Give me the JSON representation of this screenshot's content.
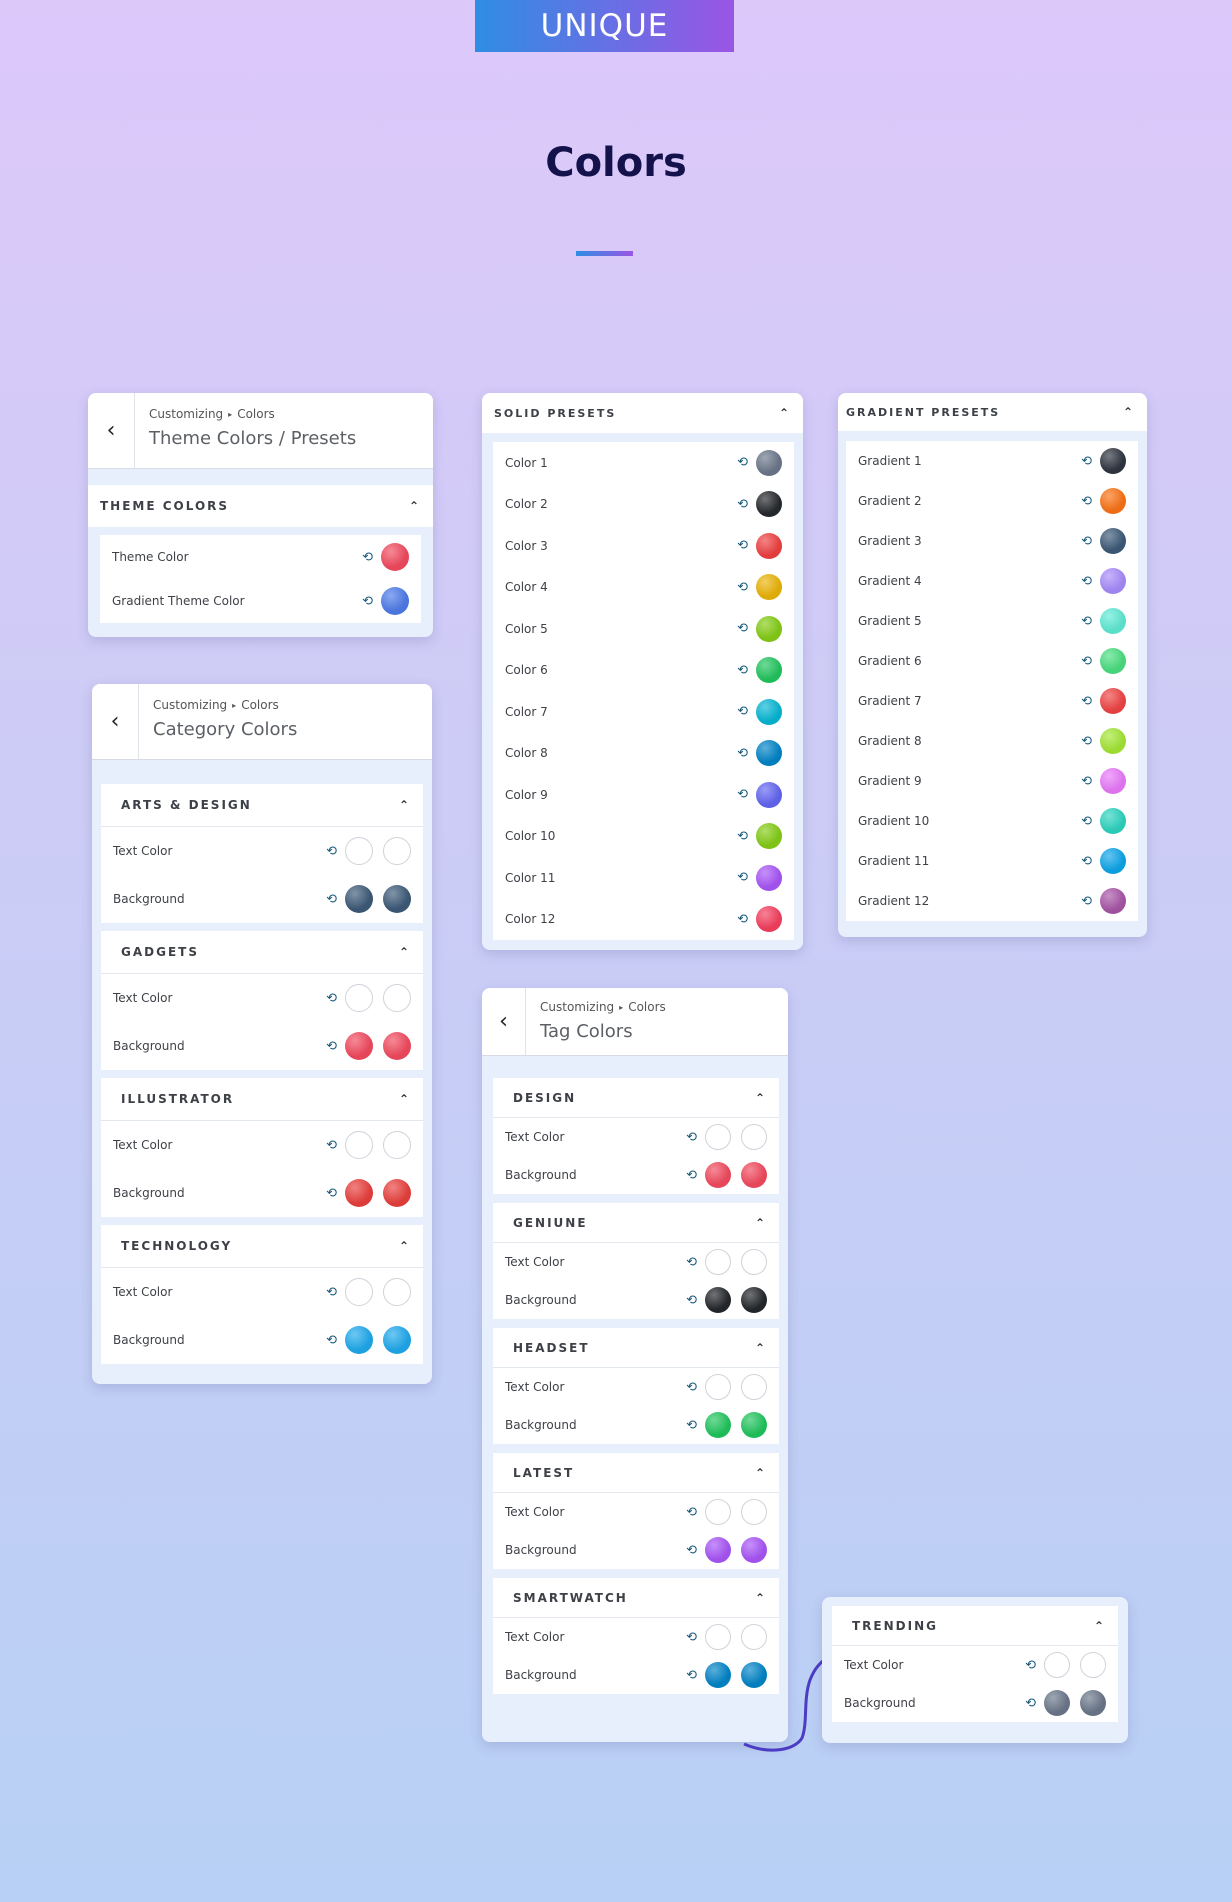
{
  "brand": "UNIQUE",
  "heading": "Colors",
  "theme_panel": {
    "crumb_a": "Customizing",
    "crumb_b": "Colors",
    "title": "Theme Colors / Presets",
    "section": "THEME COLORS",
    "rows": [
      {
        "label": "Theme Color",
        "color": "#f14a5e"
      },
      {
        "label": "Gradient Theme Color",
        "color": "#4e7be8"
      }
    ]
  },
  "category_panel": {
    "crumb_a": "Customizing",
    "crumb_b": "Colors",
    "title": "Category Colors",
    "groups": [
      {
        "name": "ARTS & DESIGN",
        "text_label": "Text Color",
        "bg_label": "Background",
        "bg": "#3d5a78"
      },
      {
        "name": "GADGETS",
        "text_label": "Text Color",
        "bg_label": "Background",
        "bg": "#f14a5e"
      },
      {
        "name": "ILLUSTRATOR",
        "text_label": "Text Color",
        "bg_label": "Background",
        "bg": "#e8403d"
      },
      {
        "name": "TECHNOLOGY",
        "text_label": "Text Color",
        "bg_label": "Background",
        "bg": "#1fa9ec"
      }
    ]
  },
  "solid_panel": {
    "section": "SOLID PRESETS",
    "rows": [
      {
        "label": "Color 1",
        "color": "#6b778a"
      },
      {
        "label": "Color 2",
        "color": "#26292d"
      },
      {
        "label": "Color 3",
        "color": "#ee4040"
      },
      {
        "label": "Color 4",
        "color": "#eab308"
      },
      {
        "label": "Color 5",
        "color": "#84cc16"
      },
      {
        "label": "Color 6",
        "color": "#22c55e"
      },
      {
        "label": "Color 7",
        "color": "#06b6d4"
      },
      {
        "label": "Color 8",
        "color": "#0284c7"
      },
      {
        "label": "Color 9",
        "color": "#6366f1"
      },
      {
        "label": "Color 10",
        "color": "#84cc16"
      },
      {
        "label": "Color 11",
        "color": "#a855f7"
      },
      {
        "label": "Color 12",
        "color": "#f43f5e"
      }
    ]
  },
  "gradient_panel": {
    "section": "GRADIENT PRESETS",
    "rows": [
      {
        "label": "Gradient 1",
        "color": "#2f3640"
      },
      {
        "label": "Gradient 2",
        "color": "#f97316"
      },
      {
        "label": "Gradient 3",
        "color": "#3d5a78"
      },
      {
        "label": "Gradient 4",
        "color": "#a78bfa"
      },
      {
        "label": "Gradient 5",
        "color": "#5eead4"
      },
      {
        "label": "Gradient 6",
        "color": "#4ade80"
      },
      {
        "label": "Gradient 7",
        "color": "#ef4444"
      },
      {
        "label": "Gradient 8",
        "color": "#a3e635"
      },
      {
        "label": "Gradient 9",
        "color": "#e879f9"
      },
      {
        "label": "Gradient 10",
        "color": "#2dd4bf"
      },
      {
        "label": "Gradient 11",
        "color": "#0ea5e9"
      },
      {
        "label": "Gradient 12",
        "color": "#a855a7"
      }
    ]
  },
  "tag_panel": {
    "crumb_a": "Customizing",
    "crumb_b": "Colors",
    "title": "Tag Colors",
    "groups": [
      {
        "name": "DESIGN",
        "text_label": "Text Color",
        "bg_label": "Background",
        "bg": "#f14a5e"
      },
      {
        "name": "GENIUNE",
        "text_label": "Text Color",
        "bg_label": "Background",
        "bg": "#24272b"
      },
      {
        "name": "HEADSET",
        "text_label": "Text Color",
        "bg_label": "Background",
        "bg": "#22c55e"
      },
      {
        "name": "LATEST",
        "text_label": "Text Color",
        "bg_label": "Background",
        "bg": "#a855f7"
      },
      {
        "name": "SMARTWATCH",
        "text_label": "Text Color",
        "bg_label": "Background",
        "bg": "#0284c7"
      }
    ]
  },
  "trending_panel": {
    "name": "TRENDING",
    "text_label": "Text Color",
    "bg_label": "Background",
    "bg": "#6b778a"
  }
}
